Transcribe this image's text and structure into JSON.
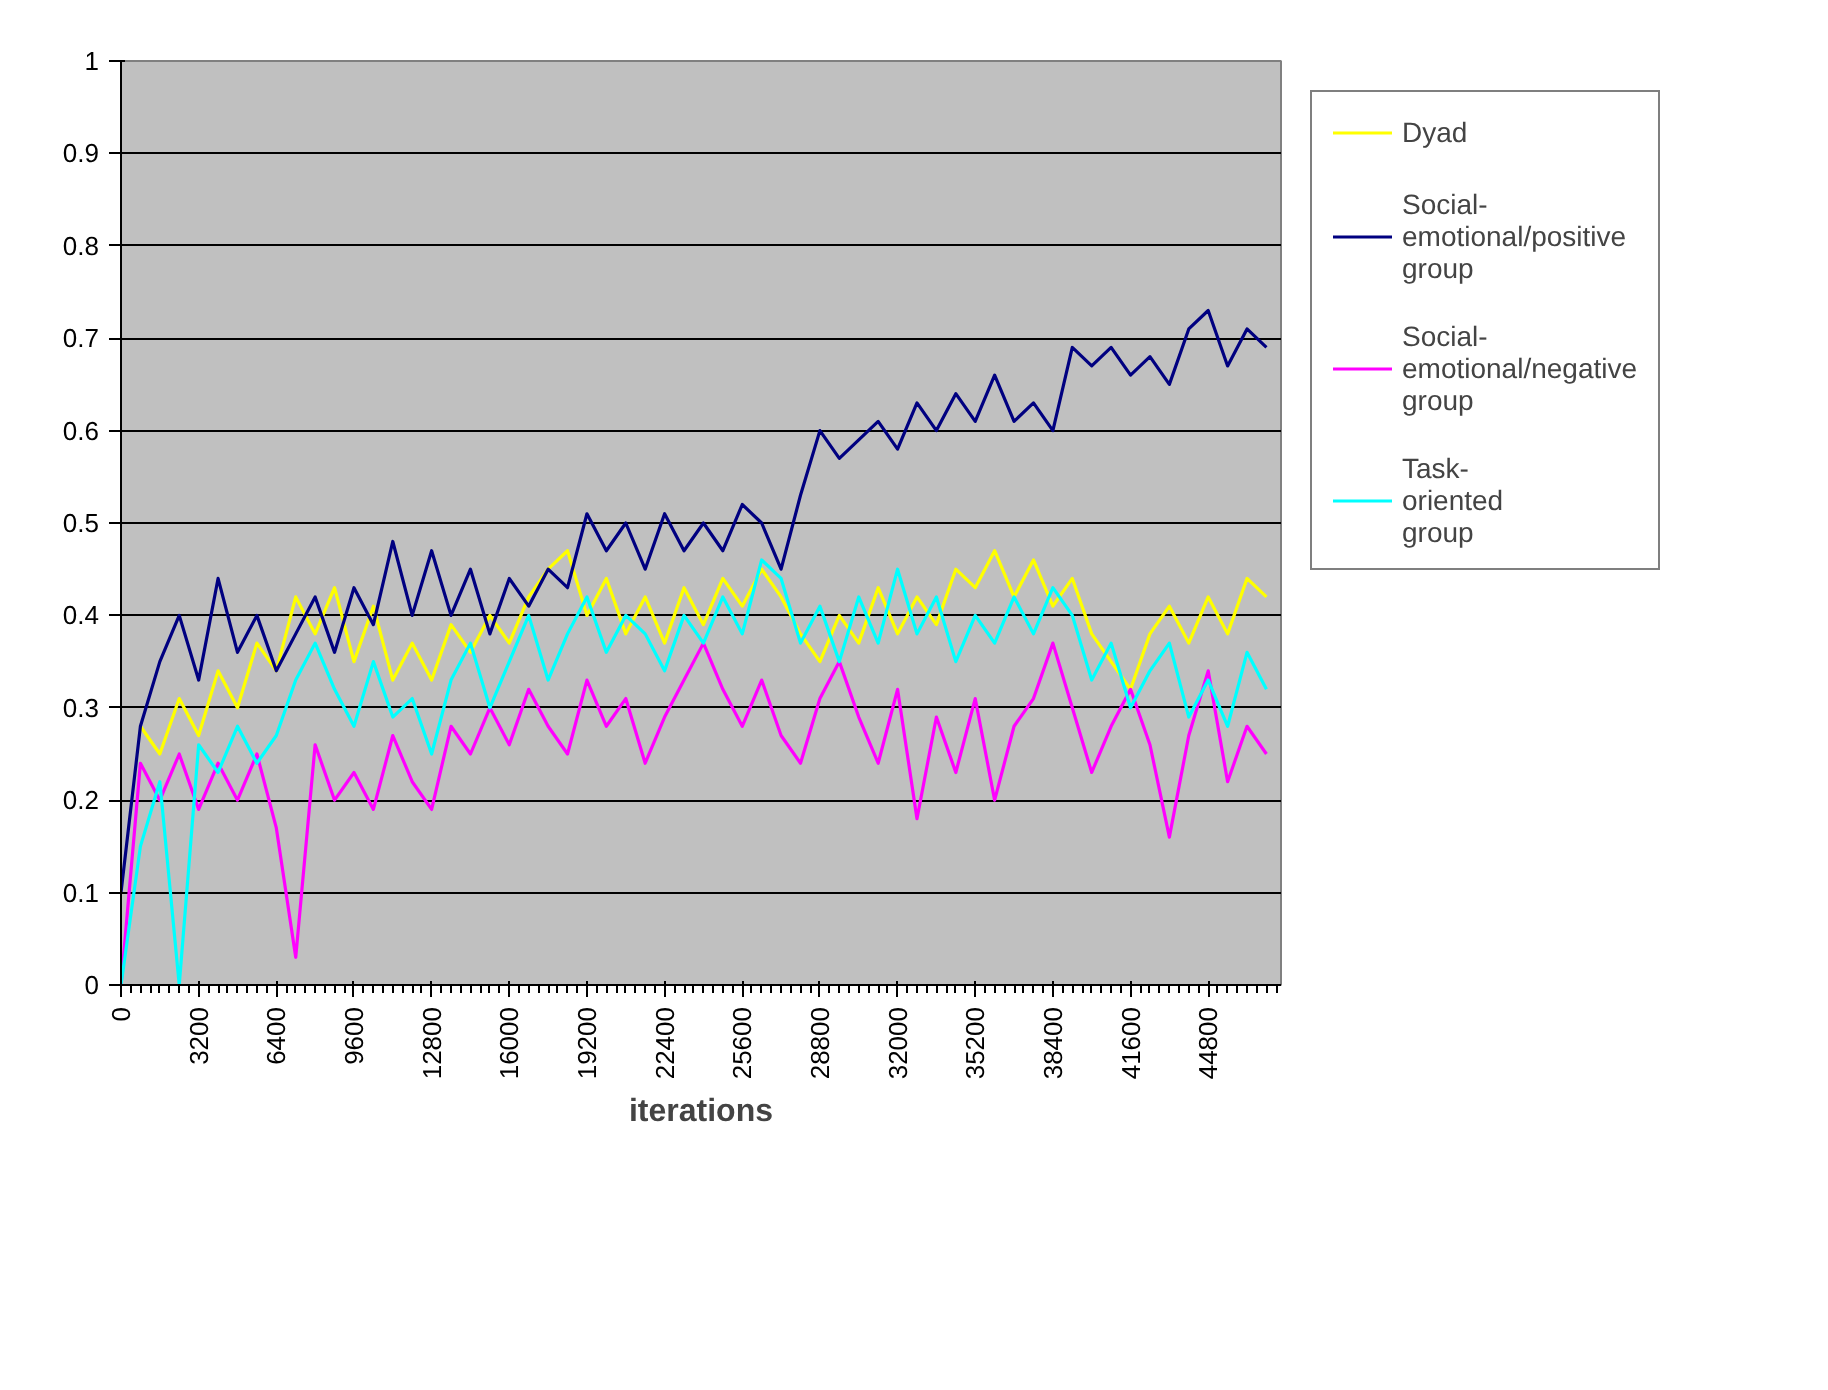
{
  "chart_data": {
    "type": "line",
    "xlabel": "iterations",
    "x": [
      0,
      800,
      1600,
      2400,
      3200,
      4000,
      4800,
      5600,
      6400,
      7200,
      8000,
      8800,
      9600,
      10400,
      11200,
      12000,
      12800,
      13600,
      14400,
      15200,
      16000,
      16800,
      17600,
      18400,
      19200,
      20000,
      20800,
      21600,
      22400,
      23200,
      24000,
      24800,
      25600,
      26400,
      27200,
      28000,
      28800,
      29600,
      30400,
      31200,
      32000,
      32800,
      33600,
      34400,
      35200,
      36000,
      36800,
      37600,
      38400,
      39200,
      40000,
      40800,
      41600,
      42400,
      43200,
      44000,
      44800,
      45600,
      46400,
      47200
    ],
    "xlim": [
      0,
      47800
    ],
    "xticks": [
      0,
      3200,
      6400,
      9600,
      12800,
      16000,
      19200,
      22400,
      25600,
      28800,
      32000,
      35200,
      38400,
      41600,
      44800
    ],
    "ylim": [
      0,
      1
    ],
    "yticks": [
      0,
      0.1,
      0.2,
      0.3,
      0.4,
      0.5,
      0.6,
      0.7,
      0.8,
      0.9,
      1
    ],
    "grid": "y",
    "legend": "right",
    "marker": "none",
    "line_style": "solid",
    "series": [
      {
        "name": "Dyad",
        "color": "#ffff00",
        "values": [
          null,
          0.28,
          0.25,
          0.31,
          0.27,
          0.34,
          0.3,
          0.37,
          0.34,
          0.42,
          0.38,
          0.43,
          0.35,
          0.41,
          0.33,
          0.37,
          0.33,
          0.39,
          0.36,
          0.4,
          0.37,
          0.42,
          0.45,
          0.47,
          0.4,
          0.44,
          0.38,
          0.42,
          0.37,
          0.43,
          0.39,
          0.44,
          0.41,
          0.45,
          0.42,
          0.38,
          0.35,
          0.4,
          0.37,
          0.43,
          0.38,
          0.42,
          0.39,
          0.45,
          0.43,
          0.47,
          0.42,
          0.46,
          0.41,
          0.44,
          0.38,
          0.35,
          0.32,
          0.38,
          0.41,
          0.37,
          0.42,
          0.38,
          0.44,
          0.42
        ]
      },
      {
        "name": "Social-emotional/positive group",
        "color": "#000080",
        "values": [
          0.1,
          0.28,
          0.35,
          0.4,
          0.33,
          0.44,
          0.36,
          0.4,
          0.34,
          0.38,
          0.42,
          0.36,
          0.43,
          0.39,
          0.48,
          0.4,
          0.47,
          0.4,
          0.45,
          0.38,
          0.44,
          0.41,
          0.45,
          0.43,
          0.51,
          0.47,
          0.5,
          0.45,
          0.51,
          0.47,
          0.5,
          0.47,
          0.52,
          0.5,
          0.45,
          0.53,
          0.6,
          0.57,
          0.59,
          0.61,
          0.58,
          0.63,
          0.6,
          0.64,
          0.61,
          0.66,
          0.61,
          0.63,
          0.6,
          0.69,
          0.67,
          0.69,
          0.66,
          0.68,
          0.65,
          0.71,
          0.73,
          0.67,
          0.71,
          0.69
        ]
      },
      {
        "name": "Social-emotional/negative group",
        "color": "#ff00ff",
        "values": [
          0.0,
          0.24,
          0.2,
          0.25,
          0.19,
          0.24,
          0.2,
          0.25,
          0.17,
          0.03,
          0.26,
          0.2,
          0.23,
          0.19,
          0.27,
          0.22,
          0.19,
          0.28,
          0.25,
          0.3,
          0.26,
          0.32,
          0.28,
          0.25,
          0.33,
          0.28,
          0.31,
          0.24,
          0.29,
          0.33,
          0.37,
          0.32,
          0.28,
          0.33,
          0.27,
          0.24,
          0.31,
          0.35,
          0.29,
          0.24,
          0.32,
          0.18,
          0.29,
          0.23,
          0.31,
          0.2,
          0.28,
          0.31,
          0.37,
          0.3,
          0.23,
          0.28,
          0.32,
          0.26,
          0.16,
          0.27,
          0.34,
          0.22,
          0.28,
          0.25
        ]
      },
      {
        "name": "Task-oriented group",
        "color": "#00ffff",
        "values": [
          0.0,
          0.15,
          0.22,
          0.0,
          0.26,
          0.23,
          0.28,
          0.24,
          0.27,
          0.33,
          0.37,
          0.32,
          0.28,
          0.35,
          0.29,
          0.31,
          0.25,
          0.33,
          0.37,
          0.3,
          0.35,
          0.4,
          0.33,
          0.38,
          0.42,
          0.36,
          0.4,
          0.38,
          0.34,
          0.4,
          0.37,
          0.42,
          0.38,
          0.46,
          0.44,
          0.37,
          0.41,
          0.35,
          0.42,
          0.37,
          0.45,
          0.38,
          0.42,
          0.35,
          0.4,
          0.37,
          0.42,
          0.38,
          0.43,
          0.4,
          0.33,
          0.37,
          0.3,
          0.34,
          0.37,
          0.29,
          0.33,
          0.28,
          0.36,
          0.32
        ]
      }
    ]
  }
}
